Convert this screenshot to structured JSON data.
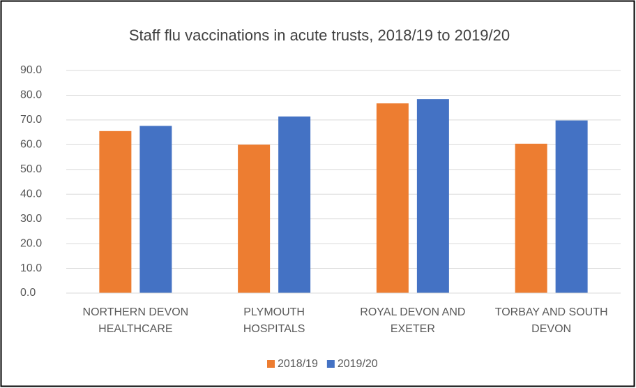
{
  "chart_data": {
    "type": "bar",
    "title": "Staff flu vaccinations  in acute trusts, 2018/19 to 2019/20",
    "categories": [
      "NORTHERN DEVON\nHEALTHCARE",
      "PLYMOUTH\nHOSPITALS",
      "ROYAL DEVON AND\nEXETER",
      "TORBAY AND SOUTH\nDEVON"
    ],
    "series": [
      {
        "name": "2018/19",
        "color": "#ed7d31",
        "values": [
          65.5,
          60.0,
          76.7,
          60.4
        ]
      },
      {
        "name": "2019/20",
        "color": "#4472c4",
        "values": [
          67.6,
          71.4,
          78.4,
          69.8
        ]
      }
    ],
    "ylim": [
      0,
      90
    ],
    "yticks": [
      {
        "value": 0,
        "label": "0.0"
      },
      {
        "value": 10,
        "label": "10.0"
      },
      {
        "value": 20,
        "label": "20.0"
      },
      {
        "value": 30,
        "label": "30.0"
      },
      {
        "value": 40,
        "label": "40.0"
      },
      {
        "value": 50,
        "label": "50.0"
      },
      {
        "value": 60,
        "label": "60.0"
      },
      {
        "value": 70,
        "label": "70.0"
      },
      {
        "value": 80,
        "label": "80.0"
      },
      {
        "value": 90,
        "label": "90.0"
      }
    ],
    "grid": true,
    "legend": "bottom"
  }
}
